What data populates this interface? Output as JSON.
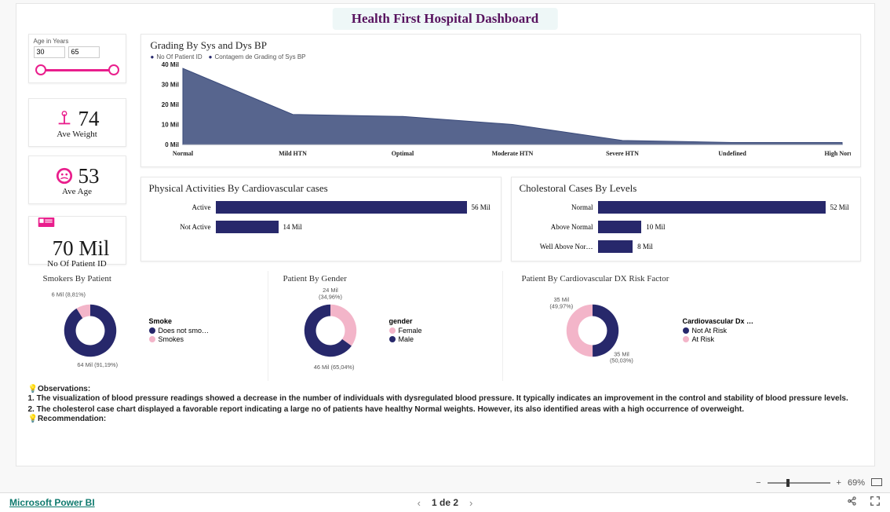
{
  "title": "Health First Hospital Dashboard",
  "colors": {
    "primary_navy": "#27286b",
    "accent_pink": "#f3b5c9",
    "slider_pink": "#e91e8c",
    "title_purple": "#58135f",
    "title_bg": "#eef7f7"
  },
  "age_slicer": {
    "label": "Age in Years",
    "min": "30",
    "max": "65"
  },
  "kpis": {
    "weight": {
      "value": "74",
      "label": "Ave Weight"
    },
    "age": {
      "value": "53",
      "label": "Ave Age"
    },
    "patients": {
      "value": "70 Mil",
      "label": "No Of Patient ID"
    }
  },
  "area_chart": {
    "title": "Grading By Sys and Dys BP",
    "legend": [
      "No Of Patient ID",
      "Contagem de Grading of Sys BP"
    ],
    "y_ticks": [
      "40 Mil",
      "30 Mil",
      "20 Mil",
      "10 Mil",
      "0 Mil"
    ],
    "y_max": 40,
    "categories": [
      "Normal",
      "Mild HTN",
      "Optimal",
      "Moderate HTN",
      "Severe HTN",
      "Undefined",
      "High Normal"
    ],
    "values": [
      38,
      15,
      14,
      10,
      2,
      1,
      1
    ],
    "fill_color": "#3a4a7a",
    "fill_opacity": 0.85
  },
  "activity_bar": {
    "title": "Physical Activities By Cardiovascular cases",
    "max": 56,
    "rows": [
      {
        "cat": "Active",
        "val": 56,
        "label": "56 Mil"
      },
      {
        "cat": "Not Active",
        "val": 14,
        "label": "14 Mil"
      }
    ],
    "bar_color": "#27286b"
  },
  "chol_bar": {
    "title": "Cholestoral Cases By Levels",
    "max": 52,
    "rows": [
      {
        "cat": "Normal",
        "val": 52,
        "label": "52 Mil"
      },
      {
        "cat": "Above Normal",
        "val": 10,
        "label": "10 Mil"
      },
      {
        "cat": "Well Above Nor…",
        "val": 8,
        "label": "8 Mil"
      }
    ],
    "bar_color": "#27286b"
  },
  "donuts": {
    "smokers": {
      "title": "Smokers By Patient",
      "legend_title": "Smoke",
      "slices": [
        {
          "name": "Does not smo…",
          "value": 64,
          "label": "64 Mil (91,19%)",
          "color": "#27286b",
          "pct": 91.19
        },
        {
          "name": "Smokes",
          "value": 6,
          "label": "6 Mil (8,81%)",
          "color": "#f3b5c9",
          "pct": 8.81
        }
      ]
    },
    "gender": {
      "title": "Patient By Gender",
      "legend_title": "gender",
      "slices": [
        {
          "name": "Female",
          "value": 24,
          "label": "24 Mil\n(34,96%)",
          "color": "#f3b5c9",
          "pct": 34.96
        },
        {
          "name": "Male",
          "value": 46,
          "label": "46 Mil (65,04%)",
          "color": "#27286b",
          "pct": 65.04
        }
      ]
    },
    "risk": {
      "title": "Patient By Cardiovascular DX Risk Factor",
      "legend_title": "Cardiovascular Dx …",
      "slices": [
        {
          "name": "Not At Risk",
          "value": 35,
          "label": "35 Mil\n(49,97%)",
          "color": "#27286b",
          "pct": 49.97
        },
        {
          "name": "At Risk",
          "value": 35,
          "label": "35 Mil\n(50,03%)",
          "color": "#f3b5c9",
          "pct": 50.03
        }
      ]
    }
  },
  "observations": {
    "heading": "Observations:",
    "line1": "1. The visualization of blood pressure readings showed a decrease in the number of individuals with dysregulated blood pressure. It typically indicates an improvement in the control and stability of blood pressure levels.",
    "line2": "2. The cholesterol case chart displayed a favorable report indicating a large no of patients have healthy Normal weights. However, its also identified areas with a high occurrence of overweight.",
    "rec": "Recommendation:"
  },
  "footer": {
    "brand": "Microsoft Power BI",
    "pager": "1 de 2",
    "zoom": "69%"
  }
}
